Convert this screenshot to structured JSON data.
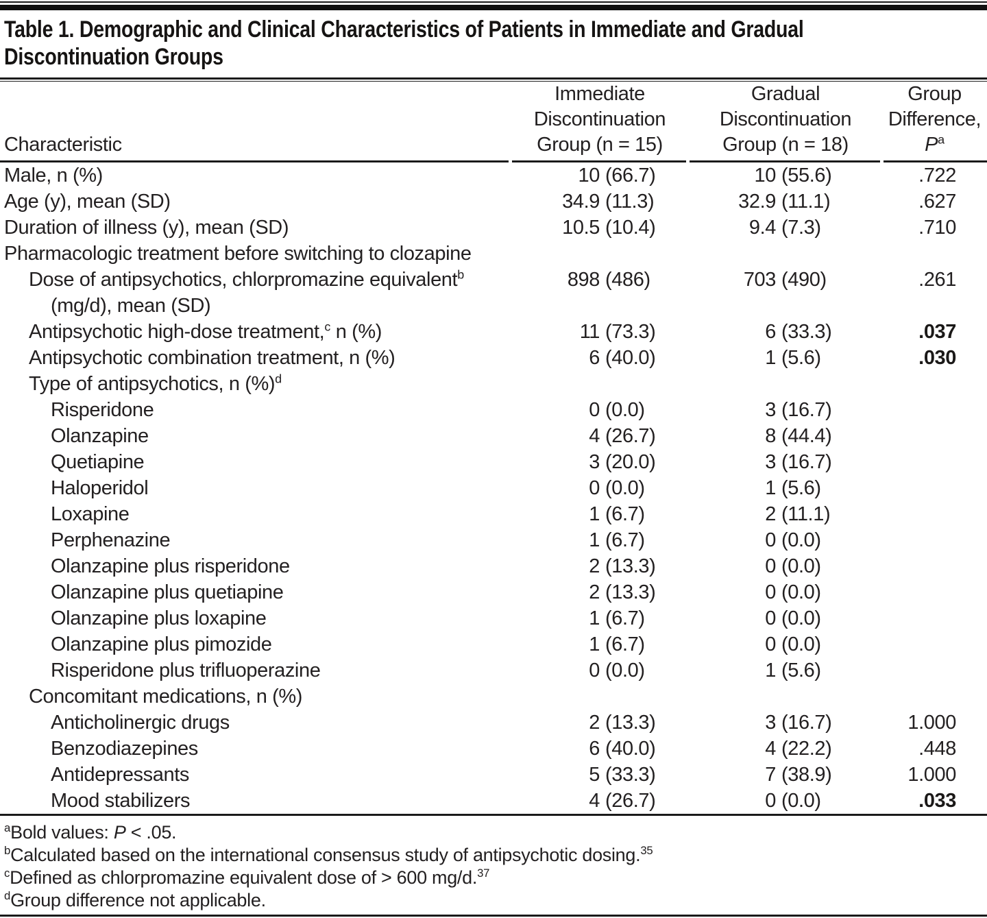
{
  "table": {
    "title_line1": "Table 1. Demographic and Clinical Characteristics of Patients in Immediate and Gradual",
    "title_line2": "Discontinuation Groups",
    "header": {
      "characteristic": "Characteristic",
      "col1": [
        "Immediate",
        "Discontinuation",
        "Group (n = 15)"
      ],
      "col2": [
        "Gradual",
        "Discontinuation",
        "Group (n = 18)"
      ],
      "col3": [
        "Group",
        "Difference,"
      ],
      "p_italic": "P",
      "p_sup": "a"
    },
    "rows": [
      {
        "label": "Male, n (%)",
        "indent": 0,
        "c1n": "10",
        "c1p": "(66.7)",
        "c2n": "10",
        "c2p": "(55.6)",
        "p": ".722"
      },
      {
        "label": "Age (y), mean (SD)",
        "indent": 0,
        "c1n": "34.9",
        "c1p": "(11.3)",
        "c2n": "32.9",
        "c2p": "(11.1)",
        "p": ".627"
      },
      {
        "label": "Duration of illness (y), mean (SD)",
        "indent": 0,
        "c1n": "10.5",
        "c1p": "(10.4)",
        "c2n": "9.4",
        "c2p": "(7.3)",
        "p": ".710"
      },
      {
        "label": "Pharmacologic treatment before switching to clozapine",
        "indent": 0
      },
      {
        "label": "Dose of antipsychotics, chlorpromazine equivalent",
        "sup": "b",
        "label2": "(mg/d), mean (SD)",
        "indent": 1,
        "c1n": "898",
        "c1p": "(486)",
        "c2n": "703",
        "c2p": "(490)",
        "p": ".261"
      },
      {
        "label": "Antipsychotic high-dose treatment,",
        "sup": "c",
        "label_post": " n (%)",
        "indent": 1,
        "c1n": "11",
        "c1p": "(73.3)",
        "c2n": "6",
        "c2p": "(33.3)",
        "p": ".037",
        "p_bold": true
      },
      {
        "label": "Antipsychotic combination treatment, n (%)",
        "indent": 1,
        "c1n": "6",
        "c1p": "(40.0)",
        "c2n": "1",
        "c2p": "(5.6)",
        "p": ".030",
        "p_bold": true
      },
      {
        "label": "Type of antipsychotics, n (%)",
        "sup": "d",
        "indent": 1
      },
      {
        "label": "Risperidone",
        "indent": 2,
        "c1n": "0",
        "c1p": "(0.0)",
        "c2n": "3",
        "c2p": "(16.7)"
      },
      {
        "label": "Olanzapine",
        "indent": 2,
        "c1n": "4",
        "c1p": "(26.7)",
        "c2n": "8",
        "c2p": "(44.4)"
      },
      {
        "label": "Quetiapine",
        "indent": 2,
        "c1n": "3",
        "c1p": "(20.0)",
        "c2n": "3",
        "c2p": "(16.7)"
      },
      {
        "label": "Haloperidol",
        "indent": 2,
        "c1n": "0",
        "c1p": "(0.0)",
        "c2n": "1",
        "c2p": "(5.6)"
      },
      {
        "label": "Loxapine",
        "indent": 2,
        "c1n": "1",
        "c1p": "(6.7)",
        "c2n": "2",
        "c2p": "(11.1)"
      },
      {
        "label": "Perphenazine",
        "indent": 2,
        "c1n": "1",
        "c1p": "(6.7)",
        "c2n": "0",
        "c2p": "(0.0)"
      },
      {
        "label": "Olanzapine plus risperidone",
        "indent": 2,
        "c1n": "2",
        "c1p": "(13.3)",
        "c2n": "0",
        "c2p": "(0.0)"
      },
      {
        "label": "Olanzapine plus quetiapine",
        "indent": 2,
        "c1n": "2",
        "c1p": "(13.3)",
        "c2n": "0",
        "c2p": "(0.0)"
      },
      {
        "label": "Olanzapine plus loxapine",
        "indent": 2,
        "c1n": "1",
        "c1p": "(6.7)",
        "c2n": "0",
        "c2p": "(0.0)"
      },
      {
        "label": "Olanzapine plus pimozide",
        "indent": 2,
        "c1n": "1",
        "c1p": "(6.7)",
        "c2n": "0",
        "c2p": "(0.0)"
      },
      {
        "label": "Risperidone plus trifluoperazine",
        "indent": 2,
        "c1n": "0",
        "c1p": "(0.0)",
        "c2n": "1",
        "c2p": "(5.6)"
      },
      {
        "label": "Concomitant medications, n (%)",
        "indent": 1
      },
      {
        "label": "Anticholinergic drugs",
        "indent": 2,
        "c1n": "2",
        "c1p": "(13.3)",
        "c2n": "3",
        "c2p": "(16.7)",
        "p": "1.000"
      },
      {
        "label": "Benzodiazepines",
        "indent": 2,
        "c1n": "6",
        "c1p": "(40.0)",
        "c2n": "4",
        "c2p": "(22.2)",
        "p": ".448"
      },
      {
        "label": "Antidepressants",
        "indent": 2,
        "c1n": "5",
        "c1p": "(33.3)",
        "c2n": "7",
        "c2p": "(38.9)",
        "p": "1.000"
      },
      {
        "label": "Mood stabilizers",
        "indent": 2,
        "c1n": "4",
        "c1p": "(26.7)",
        "c2n": "0",
        "c2p": "(0.0)",
        "p": ".033",
        "p_bold": true
      }
    ],
    "footnotes": [
      {
        "sup": "a",
        "pre": "Bold values: ",
        "italic": "P",
        "post": " < .05."
      },
      {
        "sup": "b",
        "pre": "Calculated based on the international consensus study of antipsychotic dosing.",
        "sup_end": "35"
      },
      {
        "sup": "c",
        "pre": "Defined as chlorpromazine equivalent dose of > 600 mg/d.",
        "sup_end": "37"
      },
      {
        "sup": "d",
        "pre": "Group difference not applicable."
      }
    ]
  }
}
